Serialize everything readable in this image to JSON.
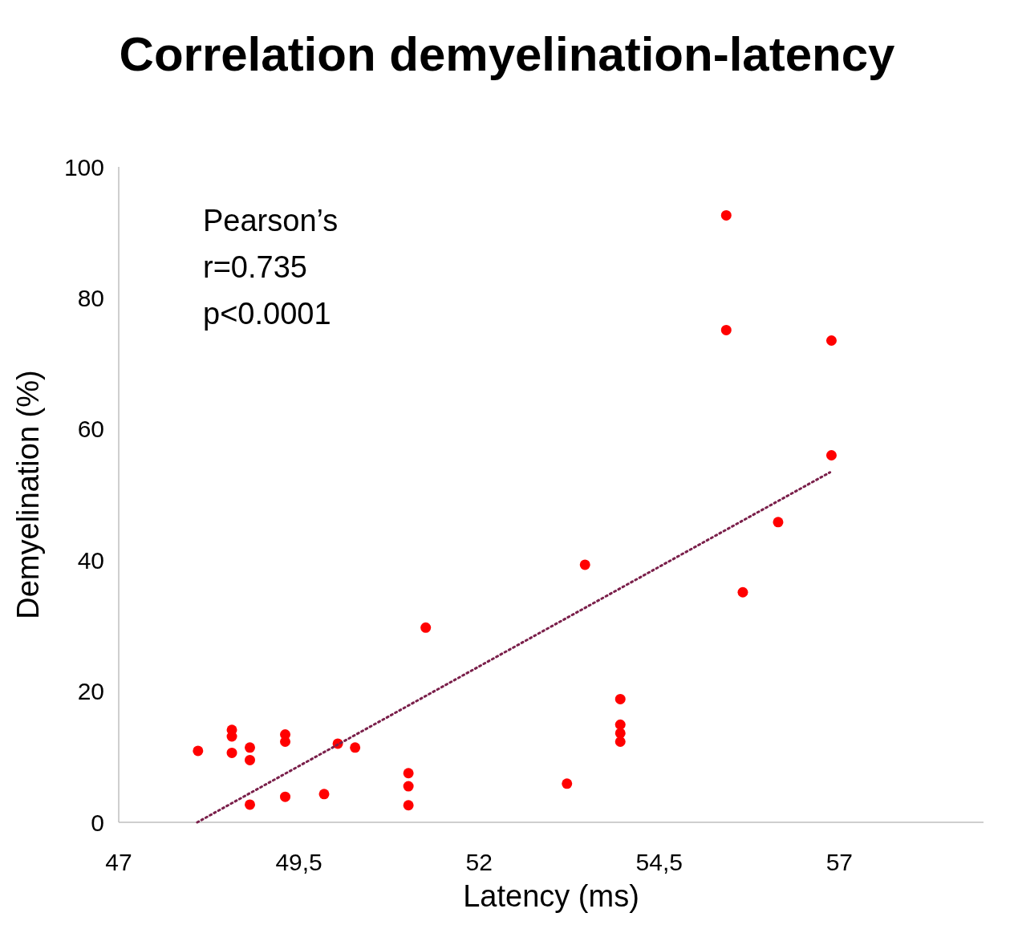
{
  "chart_data": {
    "type": "scatter",
    "title": "Correlation demyelination-latency",
    "xlabel": "Latency (ms)",
    "ylabel": "Demyelination (%)",
    "xlim": [
      47,
      59
    ],
    "ylim": [
      0,
      100
    ],
    "xticks": [
      47,
      {
        "value": 49.5,
        "label": "49,5"
      },
      52,
      {
        "value": 54.5,
        "label": "54,5"
      },
      57
    ],
    "yticks": [
      0,
      20,
      40,
      60,
      80,
      100
    ],
    "marker": "circle",
    "annotations": [
      "Pearson’s",
      "r=0.735",
      "p<0.0001"
    ],
    "series": [
      {
        "color": "#ff0000",
        "x": [
          48.1,
          48.57,
          48.57,
          48.57,
          48.82,
          48.82,
          48.82,
          49.31,
          49.31,
          49.31,
          49.85,
          50.04,
          50.28,
          51.02,
          51.02,
          51.02,
          51.26,
          53.22,
          53.47,
          53.96,
          53.96,
          53.96,
          53.96,
          55.43,
          55.43,
          55.66,
          56.15,
          56.89,
          56.89
        ],
        "values": [
          10.9,
          14.1,
          13.1,
          10.6,
          11.4,
          9.5,
          2.7,
          13.4,
          12.3,
          3.9,
          4.3,
          12.0,
          11.4,
          7.5,
          5.5,
          2.6,
          29.7,
          5.9,
          39.3,
          18.8,
          14.9,
          13.6,
          12.3,
          92.6,
          75.1,
          35.1,
          45.8,
          73.5,
          56.0
        ]
      },
      {
        "type": "line",
        "color": "#7a1f4a",
        "line_style": "dotted",
        "marker": "none",
        "x": [
          48.09,
          56.87
        ],
        "values": [
          0,
          53.4
        ]
      }
    ]
  }
}
